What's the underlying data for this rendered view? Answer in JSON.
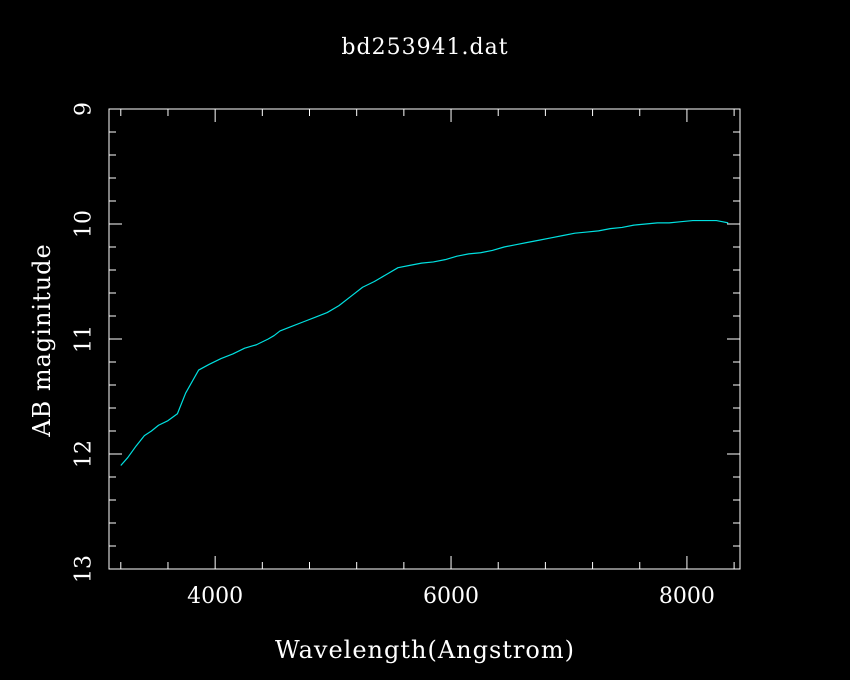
{
  "chart_data": {
    "type": "line",
    "title": "bd253941.dat",
    "xlabel": "Wavelength(Angstrom)",
    "ylabel": "AB maginitude",
    "xlim": [
      3100,
      8450
    ],
    "ylim": [
      13,
      9
    ],
    "y_inverted": true,
    "grid": false,
    "x_ticks": [
      4000,
      6000,
      8000
    ],
    "x_tick_labels": [
      "4000",
      "6000",
      "8000"
    ],
    "y_ticks": [
      9,
      10,
      11,
      12,
      13
    ],
    "y_tick_labels": [
      "9",
      "10",
      "11",
      "12",
      "13"
    ],
    "background_color": "#000000",
    "axis_color": "#ffffff",
    "series": [
      {
        "color": "#00e0e0",
        "x": [
          3200,
          3260,
          3330,
          3400,
          3460,
          3520,
          3600,
          3680,
          3750,
          3860,
          3950,
          4050,
          4150,
          4250,
          4350,
          4450,
          4500,
          4550,
          4650,
          4750,
          4850,
          4950,
          5050,
          5150,
          5250,
          5350,
          5450,
          5550,
          5650,
          5750,
          5850,
          5950,
          6050,
          6150,
          6250,
          6350,
          6450,
          6550,
          6650,
          6750,
          6850,
          6950,
          7050,
          7150,
          7250,
          7350,
          7450,
          7550,
          7650,
          7750,
          7850,
          7950,
          8050,
          8150,
          8250,
          8300,
          8350
        ],
        "y": [
          12.1,
          12.03,
          11.93,
          11.84,
          11.8,
          11.75,
          11.71,
          11.65,
          11.47,
          11.27,
          11.22,
          11.17,
          11.13,
          11.08,
          11.05,
          11.0,
          10.97,
          10.93,
          10.89,
          10.85,
          10.81,
          10.77,
          10.71,
          10.63,
          10.55,
          10.5,
          10.44,
          10.38,
          10.36,
          10.34,
          10.33,
          10.31,
          10.28,
          10.26,
          10.25,
          10.23,
          10.2,
          10.18,
          10.16,
          10.14,
          10.12,
          10.1,
          10.08,
          10.07,
          10.06,
          10.04,
          10.03,
          10.01,
          10.0,
          9.99,
          9.99,
          9.98,
          9.97,
          9.97,
          9.97,
          9.98,
          9.99
        ]
      }
    ]
  }
}
